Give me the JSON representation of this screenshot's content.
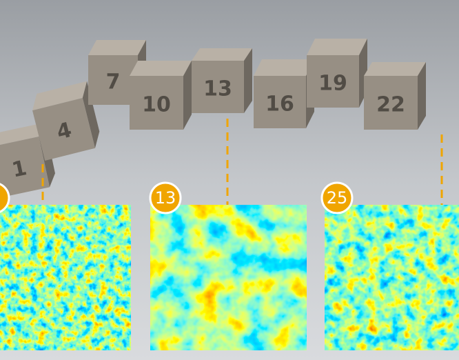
{
  "badges": [
    "13",
    "25"
  ],
  "cubes": [
    "1",
    "4",
    "7",
    "10",
    "13",
    "16",
    "19",
    "22"
  ]
}
